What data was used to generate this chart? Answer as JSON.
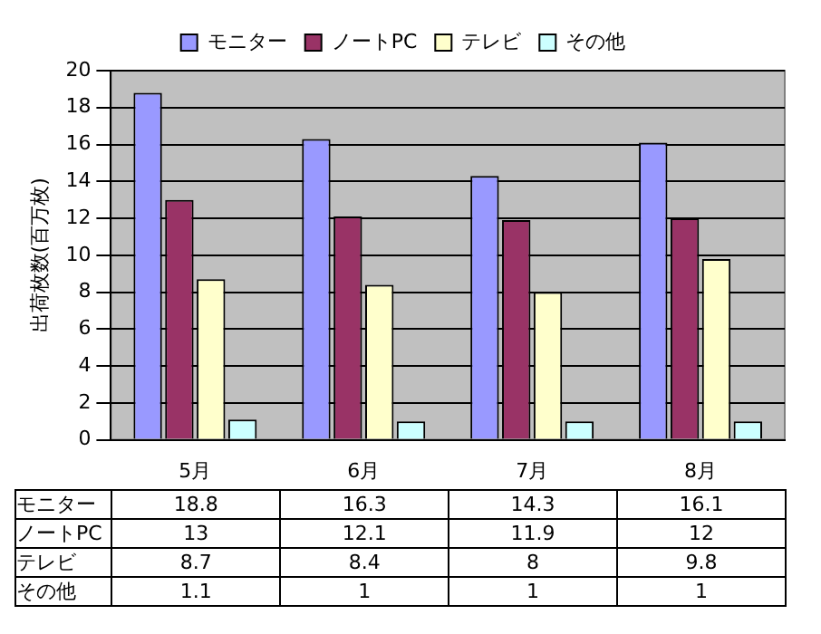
{
  "chart_data": {
    "type": "bar",
    "ylabel": "出荷枚数(百万枚)",
    "categories": [
      "5月",
      "6月",
      "7月",
      "8月"
    ],
    "series": [
      {
        "name": "モニター",
        "color": "#9999ff",
        "values": [
          18.8,
          16.3,
          14.3,
          16.1
        ]
      },
      {
        "name": "ノートPC",
        "color": "#993366",
        "values": [
          13,
          12.1,
          11.9,
          12
        ]
      },
      {
        "name": "テレビ",
        "color": "#ffffcc",
        "values": [
          8.7,
          8.4,
          8,
          9.8
        ]
      },
      {
        "name": "その他",
        "color": "#ccffff",
        "values": [
          1.1,
          1,
          1,
          1
        ]
      }
    ],
    "ylim": [
      0,
      20
    ],
    "yticks": [
      0,
      2,
      4,
      6,
      8,
      10,
      12,
      14,
      16,
      18,
      20
    ],
    "grid": "y",
    "legend": "top",
    "data_labels": true
  }
}
